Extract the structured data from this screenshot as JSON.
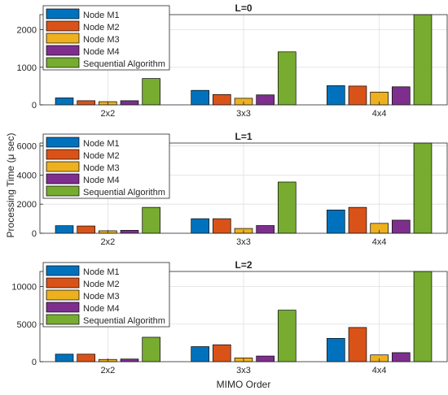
{
  "figure": {
    "ylabel": "Processing Time (μ sec)",
    "xlabel": "MIMO Order"
  },
  "chart_data": [
    {
      "type": "bar",
      "title": "L=0",
      "categories": [
        "2x2",
        "3x3",
        "4x4"
      ],
      "ylim": [
        0,
        2400
      ],
      "yticks": [
        0,
        1000,
        2000
      ],
      "grid": true,
      "legend": "top-left",
      "series": [
        {
          "name": "Node M1",
          "color": "#0072BD",
          "values": [
            185,
            385,
            510
          ]
        },
        {
          "name": "Node M2",
          "color": "#D95319",
          "values": [
            110,
            275,
            500
          ]
        },
        {
          "name": "Node M3",
          "color": "#EDB120",
          "values": [
            85,
            175,
            340
          ]
        },
        {
          "name": "Node M4",
          "color": "#7E2F8E",
          "values": [
            110,
            265,
            480
          ]
        },
        {
          "name": "Sequential Algorithm",
          "color": "#77AC30",
          "values": [
            700,
            1410,
            2400
          ]
        }
      ]
    },
    {
      "type": "bar",
      "title": "L=1",
      "categories": [
        "2x2",
        "3x3",
        "4x4"
      ],
      "ylim": [
        0,
        6200
      ],
      "yticks": [
        0,
        2000,
        4000,
        6000
      ],
      "grid": true,
      "legend": "top-left",
      "series": [
        {
          "name": "Node M1",
          "color": "#0072BD",
          "values": [
            520,
            1000,
            1600
          ]
        },
        {
          "name": "Node M2",
          "color": "#D95319",
          "values": [
            500,
            1000,
            1780
          ]
        },
        {
          "name": "Node M3",
          "color": "#EDB120",
          "values": [
            170,
            330,
            680
          ]
        },
        {
          "name": "Node M4",
          "color": "#7E2F8E",
          "values": [
            200,
            530,
            900
          ]
        },
        {
          "name": "Sequential Algorithm",
          "color": "#77AC30",
          "values": [
            1780,
            3520,
            6200
          ]
        }
      ]
    },
    {
      "type": "bar",
      "title": "L=2",
      "categories": [
        "2x2",
        "3x3",
        "4x4"
      ],
      "ylim": [
        0,
        12000
      ],
      "yticks": [
        0,
        5000,
        10000
      ],
      "grid": true,
      "legend": "top-left",
      "series": [
        {
          "name": "Node M1",
          "color": "#0072BD",
          "values": [
            1000,
            2000,
            3100
          ]
        },
        {
          "name": "Node M2",
          "color": "#D95319",
          "values": [
            1000,
            2250,
            4550
          ]
        },
        {
          "name": "Node M3",
          "color": "#EDB120",
          "values": [
            300,
            500,
            900
          ]
        },
        {
          "name": "Node M4",
          "color": "#7E2F8E",
          "values": [
            350,
            750,
            1200
          ]
        },
        {
          "name": "Sequential Algorithm",
          "color": "#77AC30",
          "values": [
            3250,
            6850,
            12000
          ]
        }
      ]
    }
  ]
}
